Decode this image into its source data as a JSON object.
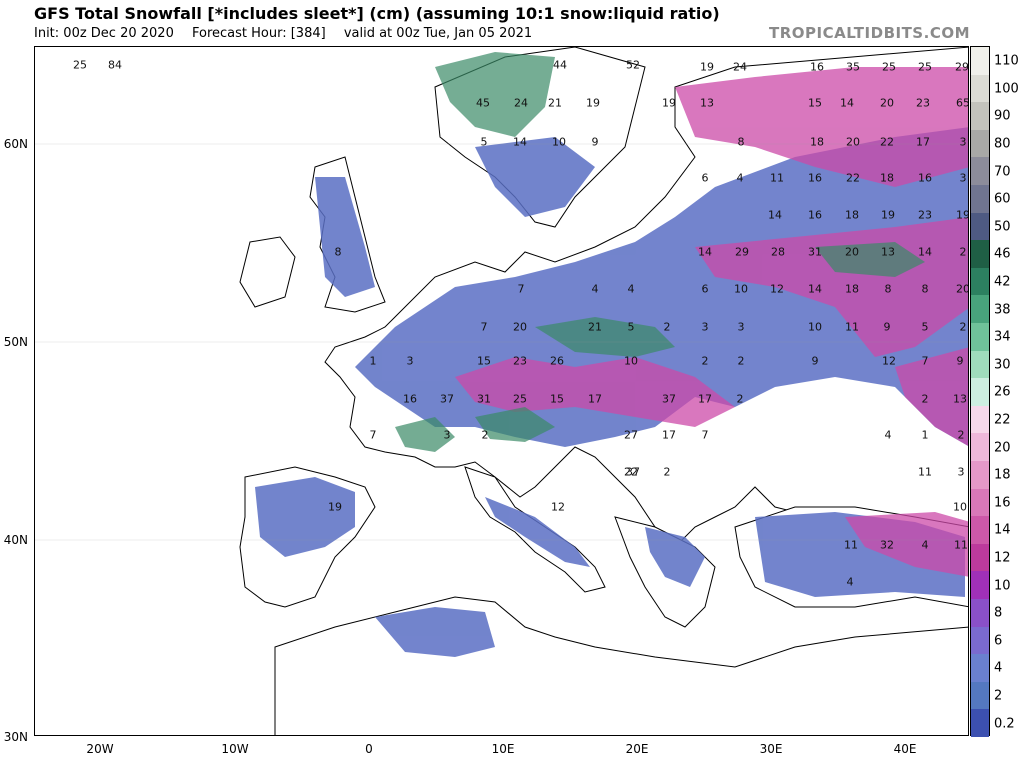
{
  "header": {
    "title": "GFS Total Snowfall [*includes sleet*] (cm) (assuming 10:1 snow:liquid ratio)",
    "init": "Init: 00z Dec 20 2020",
    "forecast_hour": "Forecast Hour: [384]",
    "valid": "valid at 00z Tue, Jan 05 2021",
    "brand": "TROPICALTIDBITS.COM"
  },
  "axes": {
    "lat_labels": [
      "60N",
      "50N",
      "40N",
      "30N"
    ],
    "lon_labels": [
      "20W",
      "10W",
      "0",
      "10E",
      "20E",
      "30E",
      "40E"
    ]
  },
  "colorbar": {
    "labels": [
      "110",
      "100",
      "90",
      "80",
      "70",
      "60",
      "50",
      "46",
      "42",
      "38",
      "34",
      "30",
      "26",
      "22",
      "20",
      "18",
      "16",
      "14",
      "12",
      "10",
      "8",
      "6",
      "4",
      "2",
      "0.2"
    ],
    "colors": [
      "#f0f0ea",
      "#dcdcd4",
      "#c4c4bc",
      "#a8a8a6",
      "#8c8c9a",
      "#707590",
      "#4e5a82",
      "#1f5f45",
      "#2c8060",
      "#48a37c",
      "#6fc29a",
      "#9fdcbc",
      "#cdeee0",
      "#f6d8ea",
      "#eeb8da",
      "#e498c8",
      "#d878b8",
      "#cc58a8",
      "#bc3a9c",
      "#a030b8",
      "#8a50c8",
      "#7a6ad0",
      "#6a80d0",
      "#5478c0",
      "#3c50b0"
    ]
  },
  "map": {
    "snow_labels": [
      {
        "t": "25"
      },
      {
        "t": "84"
      },
      {
        "t": "44"
      },
      {
        "t": "52"
      },
      {
        "t": "19"
      },
      {
        "t": "24"
      },
      {
        "t": "16"
      },
      {
        "t": "35"
      },
      {
        "t": "25"
      },
      {
        "t": "25"
      },
      {
        "t": "29"
      },
      {
        "t": "45"
      },
      {
        "t": "24"
      },
      {
        "t": "21"
      },
      {
        "t": "19"
      },
      {
        "t": "19"
      },
      {
        "t": "13"
      },
      {
        "t": "15"
      },
      {
        "t": "14"
      },
      {
        "t": "20"
      },
      {
        "t": "23"
      },
      {
        "t": "65"
      },
      {
        "t": "5"
      },
      {
        "t": "14"
      },
      {
        "t": "10"
      },
      {
        "t": "9"
      },
      {
        "t": "8"
      },
      {
        "t": "18"
      },
      {
        "t": "20"
      },
      {
        "t": "22"
      },
      {
        "t": "17"
      },
      {
        "t": "3"
      },
      {
        "t": "6"
      },
      {
        "t": "4"
      },
      {
        "t": "11"
      },
      {
        "t": "16"
      },
      {
        "t": "22"
      },
      {
        "t": "18"
      },
      {
        "t": "16"
      },
      {
        "t": "3"
      },
      {
        "t": "14"
      },
      {
        "t": "16"
      },
      {
        "t": "18"
      },
      {
        "t": "19"
      },
      {
        "t": "23"
      },
      {
        "t": "19"
      },
      {
        "t": "8"
      },
      {
        "t": "14"
      },
      {
        "t": "29"
      },
      {
        "t": "28"
      },
      {
        "t": "31"
      },
      {
        "t": "20"
      },
      {
        "t": "13"
      },
      {
        "t": "14"
      },
      {
        "t": "2"
      },
      {
        "t": "7"
      },
      {
        "t": "4"
      },
      {
        "t": "4"
      },
      {
        "t": "6"
      },
      {
        "t": "10"
      },
      {
        "t": "12"
      },
      {
        "t": "14"
      },
      {
        "t": "18"
      },
      {
        "t": "8"
      },
      {
        "t": "8"
      },
      {
        "t": "20"
      },
      {
        "t": "7"
      },
      {
        "t": "20"
      },
      {
        "t": "21"
      },
      {
        "t": "5"
      },
      {
        "t": "2"
      },
      {
        "t": "3"
      },
      {
        "t": "3"
      },
      {
        "t": "10"
      },
      {
        "t": "11"
      },
      {
        "t": "9"
      },
      {
        "t": "5"
      },
      {
        "t": "2"
      },
      {
        "t": "1"
      },
      {
        "t": "3"
      },
      {
        "t": "15"
      },
      {
        "t": "23"
      },
      {
        "t": "26"
      },
      {
        "t": "10"
      },
      {
        "t": "2"
      },
      {
        "t": "2"
      },
      {
        "t": "9"
      },
      {
        "t": "12"
      },
      {
        "t": "7"
      },
      {
        "t": "9"
      },
      {
        "t": "16"
      },
      {
        "t": "37"
      },
      {
        "t": "31"
      },
      {
        "t": "25"
      },
      {
        "t": "15"
      },
      {
        "t": "17"
      },
      {
        "t": "37"
      },
      {
        "t": "17"
      },
      {
        "t": "2"
      },
      {
        "t": "2"
      },
      {
        "t": "13"
      },
      {
        "t": "7"
      },
      {
        "t": "3"
      },
      {
        "t": "2"
      },
      {
        "t": "27"
      },
      {
        "t": "17"
      },
      {
        "t": "7"
      },
      {
        "t": "4"
      },
      {
        "t": "1"
      },
      {
        "t": "2"
      },
      {
        "t": "2"
      },
      {
        "t": "22"
      },
      {
        "t": "37"
      },
      {
        "t": "11"
      },
      {
        "t": "3"
      },
      {
        "t": "19"
      },
      {
        "t": "12"
      },
      {
        "t": "10"
      },
      {
        "t": "11"
      },
      {
        "t": "32"
      },
      {
        "t": "4"
      },
      {
        "t": "11"
      },
      {
        "t": "4"
      }
    ]
  }
}
